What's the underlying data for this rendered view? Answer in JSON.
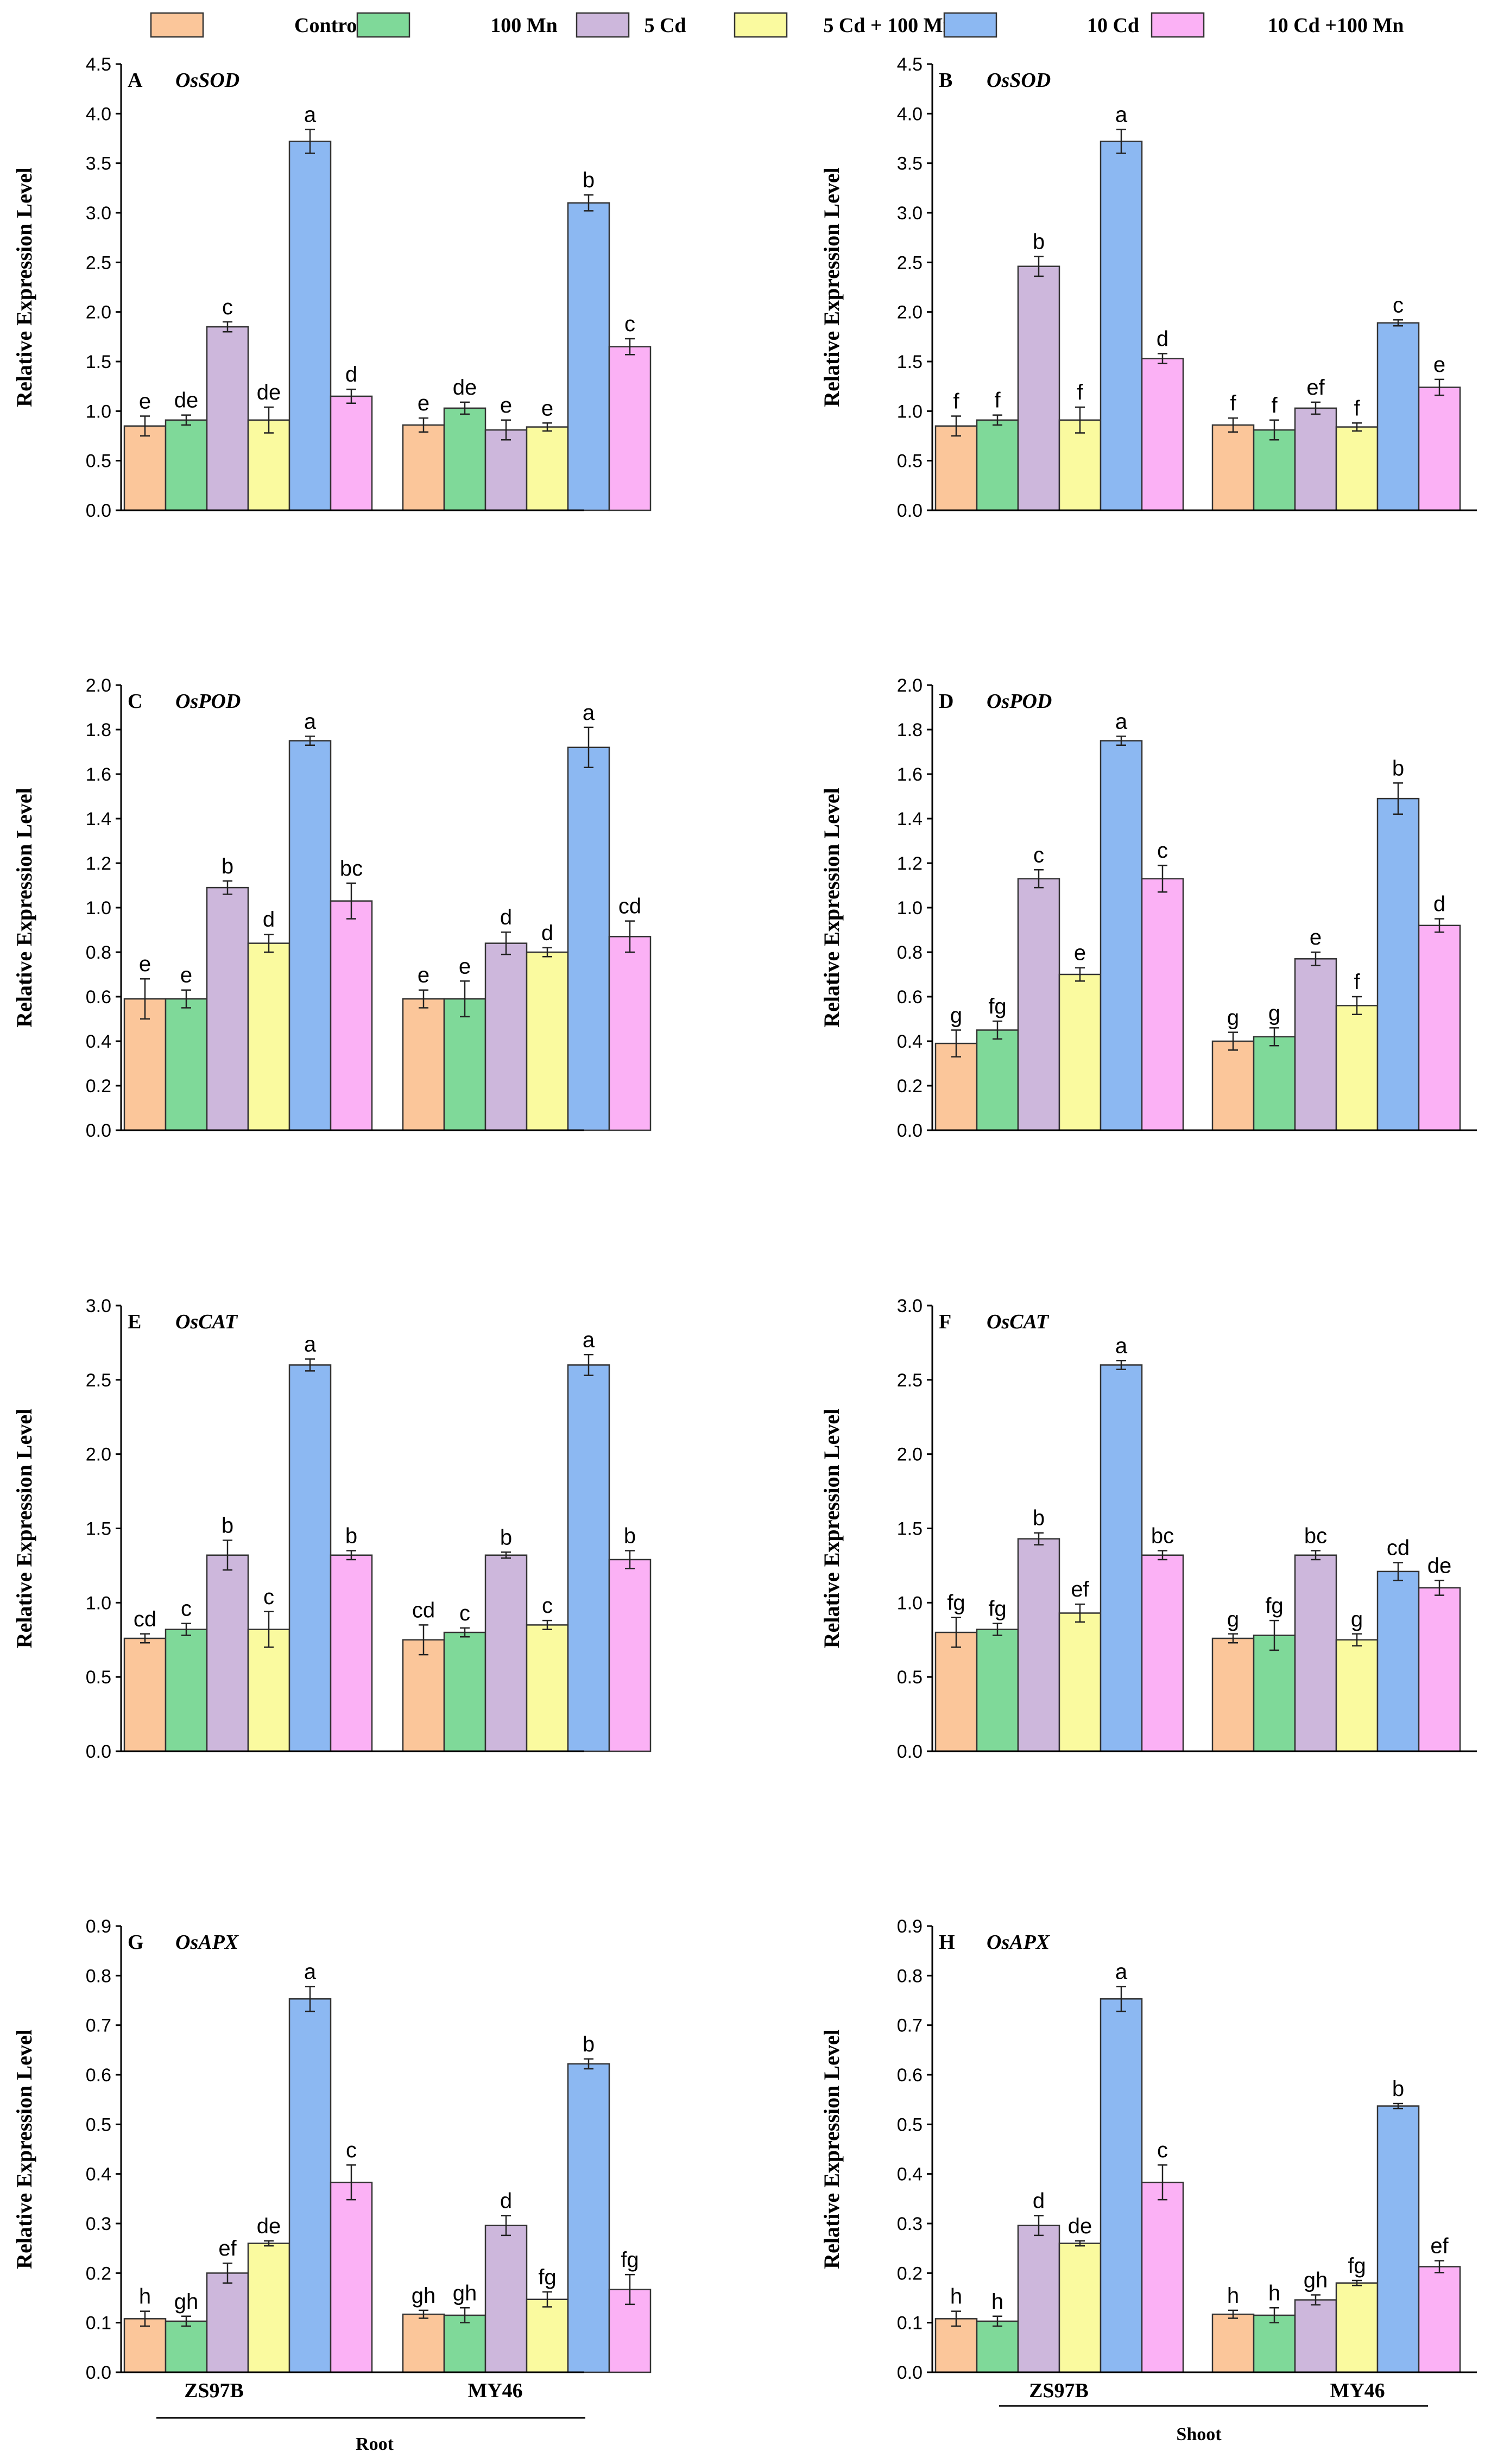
{
  "legend": {
    "items": [
      {
        "label": "Control",
        "color": "#FBC69A"
      },
      {
        "label": "100 Mn",
        "color": "#7FD999"
      },
      {
        "label": "5 Cd",
        "color": "#CDB7DC"
      },
      {
        "label": "5 Cd + 100 Mn",
        "color": "#FAFA9F"
      },
      {
        "label": "10 Cd",
        "color": "#8CB8F2"
      },
      {
        "label": "10 Cd +100 Mn",
        "color": "#FBB1F5"
      }
    ]
  },
  "axis_label": "Relative Expression Level",
  "cultivars": [
    "ZS97B",
    "MY46"
  ],
  "tissues": {
    "left": "Root",
    "right": "Shoot"
  },
  "chart_data": [
    {
      "type": "bar",
      "panel": "A",
      "gene": "OsSOD",
      "ylim": [
        0,
        4.5
      ],
      "yticks": [
        "0.0",
        "0.5",
        "1.0",
        "1.5",
        "2.0",
        "2.5",
        "3.0",
        "3.5",
        "4.0",
        "4.5"
      ],
      "ylabel": "Relative Expression Level",
      "categories": [
        "ZS97B",
        "MY46"
      ],
      "values": [
        [
          0.85,
          0.91,
          1.85,
          0.91,
          3.72,
          1.15
        ],
        [
          0.86,
          1.03,
          0.81,
          0.84,
          3.1,
          1.65
        ]
      ],
      "errors": [
        [
          0.1,
          0.05,
          0.05,
          0.13,
          0.12,
          0.07
        ],
        [
          0.07,
          0.06,
          0.1,
          0.04,
          0.08,
          0.08
        ]
      ],
      "letters": [
        [
          "e",
          "de",
          "c",
          "de",
          "a",
          "d"
        ],
        [
          "e",
          "de",
          "e",
          "e",
          "b",
          "c"
        ]
      ]
    },
    {
      "type": "bar",
      "panel": "B",
      "gene": "OsSOD",
      "ylim": [
        0,
        4.5
      ],
      "yticks": [
        "0.0",
        "0.5",
        "1.0",
        "1.5",
        "2.0",
        "2.5",
        "3.0",
        "3.5",
        "4.0",
        "4.5"
      ],
      "ylabel": "Relative Expression Level",
      "categories": [
        "ZS97B",
        "MY46"
      ],
      "values": [
        [
          0.85,
          0.91,
          2.46,
          0.91,
          3.72,
          1.53
        ],
        [
          0.86,
          0.81,
          1.03,
          0.84,
          1.89,
          1.24
        ]
      ],
      "errors": [
        [
          0.1,
          0.05,
          0.1,
          0.13,
          0.12,
          0.05
        ],
        [
          0.07,
          0.1,
          0.06,
          0.04,
          0.03,
          0.08
        ]
      ],
      "letters": [
        [
          "f",
          "f",
          "b",
          "f",
          "a",
          "d"
        ],
        [
          "f",
          "f",
          "ef",
          "f",
          "c",
          "e"
        ]
      ]
    },
    {
      "type": "bar",
      "panel": "C",
      "gene": "OsPOD",
      "ylim": [
        0,
        2.0
      ],
      "yticks": [
        "0.0",
        "0.2",
        "0.4",
        "0.6",
        "0.8",
        "1.0",
        "1.2",
        "1.4",
        "1.6",
        "1.8",
        "2.0"
      ],
      "ylabel": "Relative Expression Level",
      "categories": [
        "ZS97B",
        "MY46"
      ],
      "values": [
        [
          0.59,
          0.59,
          1.09,
          0.84,
          1.75,
          1.03
        ],
        [
          0.59,
          0.59,
          0.84,
          0.8,
          1.72,
          0.87
        ]
      ],
      "errors": [
        [
          0.09,
          0.04,
          0.03,
          0.04,
          0.02,
          0.08
        ],
        [
          0.04,
          0.08,
          0.05,
          0.02,
          0.09,
          0.07
        ]
      ],
      "letters": [
        [
          "e",
          "e",
          "b",
          "d",
          "a",
          "bc"
        ],
        [
          "e",
          "e",
          "d",
          "d",
          "a",
          "cd"
        ]
      ]
    },
    {
      "type": "bar",
      "panel": "D",
      "gene": "OsPOD",
      "ylim": [
        0,
        2.0
      ],
      "yticks": [
        "0.0",
        "0.2",
        "0.4",
        "0.6",
        "0.8",
        "1.0",
        "1.2",
        "1.4",
        "1.6",
        "1.8",
        "2.0"
      ],
      "ylabel": "Relative Expression Level",
      "categories": [
        "ZS97B",
        "MY46"
      ],
      "values": [
        [
          0.39,
          0.45,
          1.13,
          0.7,
          1.75,
          1.13
        ],
        [
          0.4,
          0.42,
          0.77,
          0.56,
          1.49,
          0.92
        ]
      ],
      "errors": [
        [
          0.06,
          0.04,
          0.04,
          0.03,
          0.02,
          0.06
        ],
        [
          0.04,
          0.04,
          0.03,
          0.04,
          0.07,
          0.03
        ]
      ],
      "letters": [
        [
          "g",
          "fg",
          "c",
          "e",
          "a",
          "c"
        ],
        [
          "g",
          "g",
          "e",
          "f",
          "b",
          "d"
        ]
      ]
    },
    {
      "type": "bar",
      "panel": "E",
      "gene": "OsCAT",
      "ylim": [
        0,
        3.0
      ],
      "yticks": [
        "0.0",
        "0.5",
        "1.0",
        "1.5",
        "2.0",
        "2.5",
        "3.0"
      ],
      "ylabel": "Relative Expression Level",
      "categories": [
        "ZS97B",
        "MY46"
      ],
      "values": [
        [
          0.76,
          0.82,
          1.32,
          0.82,
          2.6,
          1.32
        ],
        [
          0.75,
          0.8,
          1.32,
          0.85,
          2.6,
          1.29
        ]
      ],
      "errors": [
        [
          0.03,
          0.04,
          0.1,
          0.12,
          0.04,
          0.03
        ],
        [
          0.1,
          0.03,
          0.02,
          0.03,
          0.07,
          0.06
        ]
      ],
      "letters": [
        [
          "cd",
          "c",
          "b",
          "c",
          "a",
          "b"
        ],
        [
          "cd",
          "c",
          "b",
          "c",
          "a",
          "b"
        ]
      ]
    },
    {
      "type": "bar",
      "panel": "F",
      "gene": "OsCAT",
      "ylim": [
        0,
        3.0
      ],
      "yticks": [
        "0.0",
        "0.5",
        "1.0",
        "1.5",
        "2.0",
        "2.5",
        "3.0"
      ],
      "ylabel": "Relative Expression Level",
      "categories": [
        "ZS97B",
        "MY46"
      ],
      "values": [
        [
          0.8,
          0.82,
          1.43,
          0.93,
          2.6,
          1.32
        ],
        [
          0.76,
          0.78,
          1.32,
          0.75,
          1.21,
          1.1
        ]
      ],
      "errors": [
        [
          0.1,
          0.04,
          0.04,
          0.06,
          0.03,
          0.03
        ],
        [
          0.03,
          0.1,
          0.03,
          0.04,
          0.06,
          0.05
        ]
      ],
      "letters": [
        [
          "fg",
          "fg",
          "b",
          "ef",
          "a",
          "bc"
        ],
        [
          "g",
          "fg",
          "bc",
          "g",
          "cd",
          "de"
        ]
      ]
    },
    {
      "type": "bar",
      "panel": "G",
      "gene": "OsAPX",
      "ylim": [
        0,
        0.9
      ],
      "yticks": [
        "0.0",
        "0.1",
        "0.2",
        "0.3",
        "0.4",
        "0.5",
        "0.6",
        "0.7",
        "0.8",
        "0.9"
      ],
      "ylabel": "Relative Expression Level",
      "categories": [
        "ZS97B",
        "MY46"
      ],
      "values": [
        [
          0.108,
          0.103,
          0.2,
          0.26,
          0.753,
          0.383
        ],
        [
          0.117,
          0.115,
          0.296,
          0.147,
          0.622,
          0.167
        ]
      ],
      "errors": [
        [
          0.015,
          0.01,
          0.02,
          0.005,
          0.025,
          0.035
        ],
        [
          0.008,
          0.015,
          0.02,
          0.015,
          0.01,
          0.03
        ]
      ],
      "letters": [
        [
          "h",
          "gh",
          "ef",
          "de",
          "a",
          "c"
        ],
        [
          "gh",
          "gh",
          "d",
          "fg",
          "b",
          "fg"
        ]
      ]
    },
    {
      "type": "bar",
      "panel": "H",
      "gene": "OsAPX",
      "ylim": [
        0,
        0.9
      ],
      "yticks": [
        "0.0",
        "0.1",
        "0.2",
        "0.3",
        "0.4",
        "0.5",
        "0.6",
        "0.7",
        "0.8",
        "0.9"
      ],
      "ylabel": "Relative Expression Level",
      "categories": [
        "ZS97B",
        "MY46"
      ],
      "values": [
        [
          0.108,
          0.103,
          0.296,
          0.26,
          0.753,
          0.383
        ],
        [
          0.117,
          0.115,
          0.146,
          0.18,
          0.537,
          0.213
        ]
      ],
      "errors": [
        [
          0.015,
          0.01,
          0.02,
          0.005,
          0.025,
          0.035
        ],
        [
          0.008,
          0.015,
          0.01,
          0.005,
          0.005,
          0.012
        ]
      ],
      "letters": [
        [
          "h",
          "h",
          "d",
          "de",
          "a",
          "c"
        ],
        [
          "h",
          "h",
          "gh",
          "fg",
          "b",
          "ef"
        ]
      ]
    }
  ]
}
